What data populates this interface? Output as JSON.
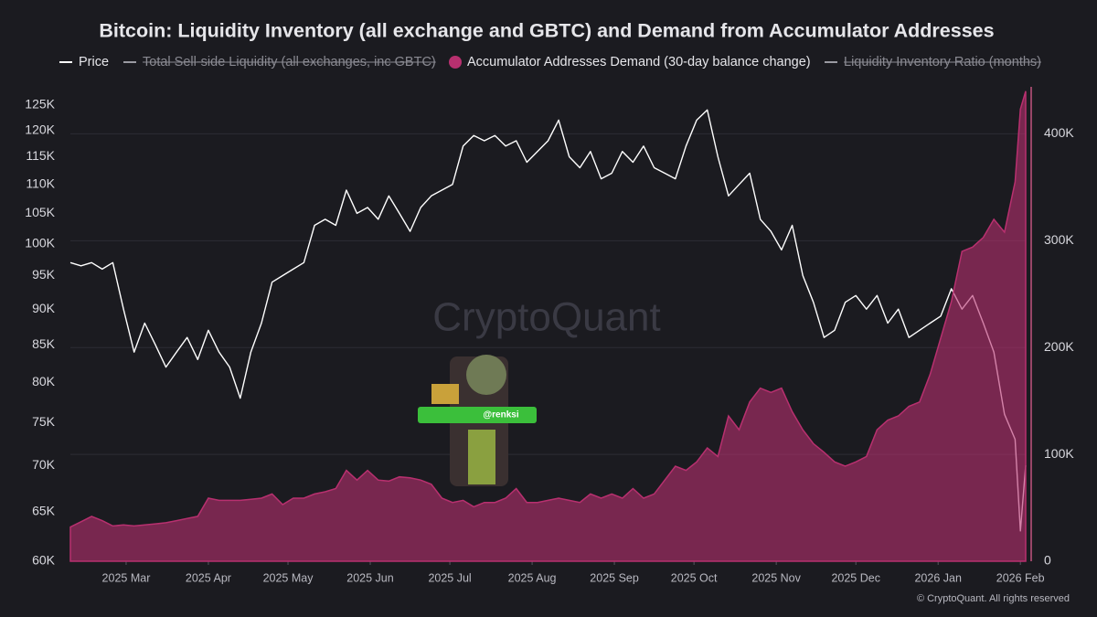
{
  "chart_data": {
    "type": "line-area",
    "title": "Bitcoin: Liquidity Inventory (all exchange and GBTC) and Demand from Accumulator Addresses",
    "watermark": "CryptoQuant",
    "sticker_label": "@renksi",
    "credit": "© CryptoQuant. All rights reserved",
    "x": [
      0,
      4,
      8,
      12,
      16,
      20,
      24,
      28,
      32,
      36,
      40,
      44,
      48,
      52,
      56,
      60,
      64,
      68,
      72,
      76,
      80,
      84,
      88,
      92,
      96,
      100,
      104,
      108,
      112,
      116,
      120,
      124,
      128,
      132,
      136,
      140,
      144,
      148,
      152,
      156,
      160,
      164,
      168,
      172,
      176,
      180,
      184,
      188,
      192,
      196,
      200,
      204,
      208,
      212,
      216,
      220,
      224,
      228,
      232,
      236,
      240,
      244,
      248,
      252,
      256,
      260,
      264,
      268,
      272,
      276,
      280,
      284,
      288,
      292,
      296,
      300,
      304,
      308,
      312,
      316,
      320,
      324,
      328,
      332,
      336,
      340,
      344,
      348,
      352,
      356,
      358,
      360
    ],
    "xlim": [
      0,
      360
    ],
    "xticks": [
      {
        "value": 21,
        "label": "2025 Mar"
      },
      {
        "value": 52,
        "label": "2025 Apr"
      },
      {
        "value": 82,
        "label": "2025 May"
      },
      {
        "value": 113,
        "label": "2025 Jun"
      },
      {
        "value": 143,
        "label": "2025 Jul"
      },
      {
        "value": 174,
        "label": "2025 Aug"
      },
      {
        "value": 205,
        "label": "2025 Sep"
      },
      {
        "value": 235,
        "label": "2025 Oct"
      },
      {
        "value": 266,
        "label": "2025 Nov"
      },
      {
        "value": 296,
        "label": "2025 Dec"
      },
      {
        "value": 327,
        "label": "2026 Jan"
      },
      {
        "value": 358,
        "label": "2026 Feb"
      }
    ],
    "y_scale": "log",
    "ylim": [
      60000,
      128700
    ],
    "yticks": [
      {
        "value": 60000,
        "label": "60K"
      },
      {
        "value": 65000,
        "label": "65K"
      },
      {
        "value": 70000,
        "label": "70K"
      },
      {
        "value": 75000,
        "label": "75K"
      },
      {
        "value": 80000,
        "label": "80K"
      },
      {
        "value": 85000,
        "label": "85K"
      },
      {
        "value": 90000,
        "label": "90K"
      },
      {
        "value": 95000,
        "label": "95K"
      },
      {
        "value": 100000,
        "label": "100K"
      },
      {
        "value": 105000,
        "label": "105K"
      },
      {
        "value": 110000,
        "label": "110K"
      },
      {
        "value": 115000,
        "label": "115K"
      },
      {
        "value": 120000,
        "label": "120K"
      },
      {
        "value": 125000,
        "label": "125K"
      }
    ],
    "y2lim": [
      0,
      444000
    ],
    "y2ticks": [
      0,
      {
        "value": 100000,
        "label": "100K"
      },
      {
        "value": 200000,
        "label": "200K"
      },
      {
        "value": 300000,
        "label": "300K"
      },
      {
        "value": 400000,
        "label": "400K"
      }
    ],
    "grid": "y2",
    "series": [
      {
        "name": "Price",
        "color": "#ffffff",
        "kind": "line",
        "values": [
          97000,
          96500,
          97000,
          96000,
          97000,
          90000,
          84000,
          88000,
          85000,
          82000,
          84000,
          86000,
          83000,
          87000,
          84000,
          82000,
          78000,
          84000,
          88000,
          94000,
          95000,
          96000,
          97000,
          103000,
          104000,
          103000,
          109000,
          105000,
          106000,
          104000,
          108000,
          105000,
          102000,
          106000,
          108000,
          109000,
          110000,
          117000,
          119000,
          118000,
          119000,
          117000,
          118000,
          114000,
          116000,
          118000,
          122000,
          115000,
          113000,
          116000,
          111000,
          112000,
          116000,
          114000,
          117000,
          113000,
          112000,
          111000,
          117000,
          122000,
          124000,
          115000,
          108000,
          110000,
          112000,
          104000,
          102000,
          99000,
          103000,
          95000,
          91000,
          86000,
          87000,
          91000,
          92000,
          90000,
          92000,
          88000,
          90000,
          86000,
          87000,
          88000,
          89000,
          93000,
          90000,
          92000,
          88000,
          84000,
          76000,
          73000,
          63000,
          70000
        ]
      },
      {
        "name": "Total Sell-side Liquidity (all exchanges, inc GBTC)",
        "color": "#9a9aa2",
        "hidden": true
      },
      {
        "name": "Accumulator Addresses Demand (30-day balance change)",
        "color": "#b8306f",
        "kind": "area",
        "axis": "y2",
        "values": [
          32000,
          37000,
          42000,
          38000,
          33000,
          34000,
          33000,
          34000,
          35000,
          36000,
          38000,
          40000,
          42000,
          59000,
          57000,
          57000,
          57000,
          58000,
          59000,
          63000,
          53000,
          59000,
          59000,
          63000,
          65000,
          68000,
          85000,
          76000,
          85000,
          76000,
          75000,
          79000,
          78000,
          76000,
          72000,
          59000,
          55000,
          57000,
          51000,
          55000,
          55000,
          59000,
          68000,
          55000,
          55000,
          57000,
          59000,
          57000,
          55000,
          63000,
          59000,
          63000,
          59000,
          68000,
          59000,
          63000,
          76000,
          89000,
          85000,
          93000,
          106000,
          98000,
          136000,
          123000,
          149000,
          162000,
          158000,
          162000,
          140000,
          123000,
          110000,
          102000,
          93000,
          89000,
          93000,
          98000,
          123000,
          132000,
          136000,
          145000,
          149000,
          175000,
          209000,
          243000,
          290000,
          294000,
          303000,
          320000,
          308000,
          355000,
          423000,
          440000
        ]
      },
      {
        "name": "Liquidity Inventory Ratio (months)",
        "color": "#9a9aa2",
        "hidden": true
      }
    ]
  }
}
